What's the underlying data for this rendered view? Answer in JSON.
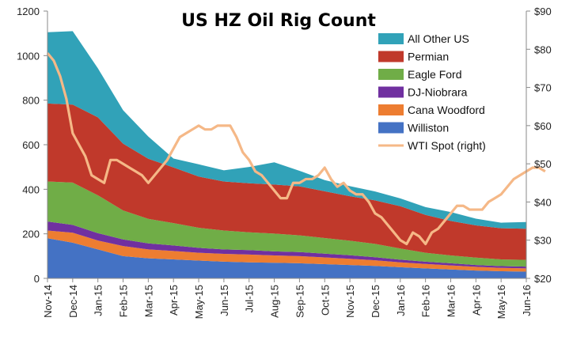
{
  "chart_data": {
    "type": "area",
    "title": "US HZ Oil Rig Count",
    "stacked": true,
    "x": [
      "Nov-14",
      "Dec-14",
      "Jan-15",
      "Feb-15",
      "Mar-15",
      "Apr-15",
      "May-15",
      "Jun-15",
      "Jul-15",
      "Aug-15",
      "Sep-15",
      "Oct-15",
      "Nov-15",
      "Dec-15",
      "Jan-16",
      "Feb-16",
      "Mar-16",
      "Apr-16",
      "May-16",
      "Jun-16"
    ],
    "ylim": [
      0,
      1200
    ],
    "yticks": [
      0,
      200,
      400,
      600,
      800,
      1000,
      1200
    ],
    "y2lim": [
      20,
      90
    ],
    "y2ticks": [
      "$20",
      "$30",
      "$40",
      "$50",
      "$60",
      "$70",
      "$80",
      "$90"
    ],
    "y2tick_values": [
      20,
      30,
      40,
      50,
      60,
      70,
      80,
      90
    ],
    "grid": false,
    "legend_position": "top-right",
    "series": [
      {
        "name": "Williston",
        "color": "#4472C4",
        "values": [
          180,
          160,
          130,
          100,
          90,
          85,
          80,
          75,
          72,
          70,
          68,
          64,
          60,
          56,
          50,
          45,
          40,
          35,
          32,
          30
        ]
      },
      {
        "name": "Cana Woodford",
        "color": "#ED7D31",
        "values": [
          35,
          45,
          40,
          45,
          40,
          38,
          35,
          35,
          35,
          33,
          32,
          30,
          28,
          25,
          22,
          20,
          18,
          17,
          15,
          15
        ]
      },
      {
        "name": "DJ-Niobrara",
        "color": "#7030A0",
        "values": [
          40,
          35,
          33,
          30,
          27,
          25,
          22,
          20,
          20,
          18,
          18,
          17,
          16,
          14,
          12,
          10,
          10,
          8,
          8,
          8
        ]
      },
      {
        "name": "Eagle Ford",
        "color": "#70AD47",
        "values": [
          180,
          190,
          170,
          130,
          110,
          100,
          90,
          85,
          80,
          80,
          75,
          70,
          65,
          60,
          50,
          40,
          35,
          33,
          30,
          30
        ]
      },
      {
        "name": "Permian",
        "color": "#C0392B",
        "values": [
          350,
          350,
          350,
          300,
          270,
          250,
          230,
          220,
          220,
          220,
          220,
          210,
          200,
          195,
          190,
          170,
          155,
          145,
          140,
          140
        ]
      },
      {
        "name": "All Other US",
        "color": "#31A2B8",
        "values": [
          320,
          330,
          220,
          150,
          100,
          40,
          55,
          50,
          73,
          100,
          70,
          50,
          45,
          40,
          35,
          35,
          40,
          30,
          25,
          30
        ]
      }
    ],
    "line_series": {
      "name": "WTI Spot (right)",
      "axis": "right",
      "color": "#F5B887",
      "x_positions": [
        0,
        0.25,
        0.5,
        0.75,
        1,
        1.25,
        1.5,
        1.75,
        2,
        2.25,
        2.5,
        2.75,
        3,
        3.25,
        3.5,
        3.75,
        4,
        4.25,
        4.5,
        4.75,
        5,
        5.25,
        5.5,
        5.75,
        6,
        6.25,
        6.5,
        6.75,
        7,
        7.25,
        7.5,
        7.75,
        8,
        8.25,
        8.5,
        8.75,
        9,
        9.25,
        9.5,
        9.75,
        10,
        10.25,
        10.5,
        10.75,
        11,
        11.25,
        11.5,
        11.75,
        12,
        12.25,
        12.5,
        12.75,
        13,
        13.25,
        13.5,
        13.75,
        14,
        14.25,
        14.5,
        14.75,
        15,
        15.25,
        15.5,
        15.75,
        16,
        16.25,
        16.5,
        16.75,
        17,
        17.25,
        17.5,
        17.75,
        18,
        18.25,
        18.5,
        18.75,
        19,
        19.25,
        19.5,
        19.75
      ],
      "values": [
        79,
        77,
        73,
        67,
        58,
        55,
        52,
        47,
        46,
        45,
        51,
        51,
        50,
        49,
        48,
        47,
        45,
        47,
        49,
        51,
        54,
        57,
        58,
        59,
        60,
        59,
        59,
        60,
        60,
        60,
        57,
        53,
        51,
        48,
        47,
        45,
        43,
        41,
        41,
        45,
        45,
        46,
        46,
        47,
        49,
        46,
        44,
        45,
        43,
        42,
        42,
        40,
        37,
        36,
        34,
        32,
        30,
        29,
        32,
        31,
        29,
        32,
        33,
        35,
        37,
        39,
        39,
        38,
        38,
        38,
        40,
        41,
        42,
        44,
        46,
        47,
        48,
        49,
        49,
        48
      ]
    }
  }
}
